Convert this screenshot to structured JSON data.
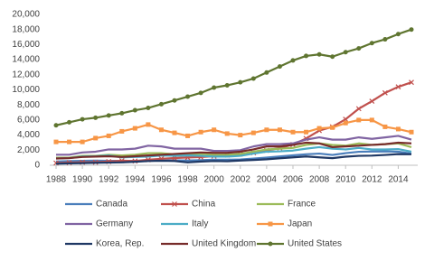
{
  "chart_data": {
    "type": "line",
    "x": [
      1988,
      1989,
      1990,
      1991,
      1992,
      1993,
      1994,
      1995,
      1996,
      1997,
      1998,
      1999,
      2000,
      2001,
      2002,
      2003,
      2004,
      2005,
      2006,
      2007,
      2008,
      2009,
      2010,
      2011,
      2012,
      2013,
      2014,
      2015
    ],
    "xlim": [
      1988,
      2015
    ],
    "xticks": [
      1988,
      1990,
      1992,
      1994,
      1996,
      1998,
      2000,
      2002,
      2004,
      2006,
      2008,
      2010,
      2012,
      2014
    ],
    "ylim": [
      0,
      20000
    ],
    "yticks": [
      0,
      {
        "value": 2000,
        "label": "2,000"
      },
      {
        "value": 4000,
        "label": "4,000"
      },
      {
        "value": 6000,
        "label": "6,000"
      },
      {
        "value": 8000,
        "label": "8,000"
      },
      {
        "value": 10000,
        "label": "10,000"
      },
      {
        "value": 12000,
        "label": "12,000"
      },
      {
        "value": 14000,
        "label": "14,000"
      },
      {
        "value": 16000,
        "label": "16,000"
      },
      {
        "value": 18000,
        "label": "18,000"
      },
      {
        "value": 20000,
        "label": "20,000"
      }
    ],
    "grid": false,
    "legend": "bottom",
    "series": [
      {
        "name": "Canada",
        "color": "#4a7ebb",
        "marker": "none",
        "values": [
          500,
          560,
          590,
          610,
          590,
          580,
          580,
          600,
          630,
          650,
          630,
          680,
          740,
          740,
          760,
          890,
          1020,
          1170,
          1320,
          1460,
          1550,
          1370,
          1610,
          1790,
          1830,
          1840,
          1800,
          1550
        ]
      },
      {
        "name": "China",
        "color": "#c0504d",
        "marker": "x",
        "values": [
          300,
          350,
          400,
          400,
          490,
          610,
          560,
          730,
          860,
          960,
          1030,
          1090,
          1200,
          1340,
          1470,
          1660,
          1960,
          2290,
          2750,
          3550,
          4600,
          5100,
          6100,
          7500,
          8500,
          9600,
          10400,
          11000
        ]
      },
      {
        "name": "France",
        "color": "#9bbb59",
        "marker": "none",
        "values": [
          1000,
          1000,
          1250,
          1250,
          1400,
          1300,
          1400,
          1600,
          1600,
          1450,
          1500,
          1500,
          1400,
          1400,
          1500,
          1800,
          2100,
          2200,
          2300,
          2700,
          2900,
          2700,
          2600,
          2900,
          2700,
          2800,
          2900,
          2400
        ]
      },
      {
        "name": "Germany",
        "color": "#8064a2",
        "marker": "none",
        "values": [
          1400,
          1400,
          1700,
          1800,
          2100,
          2100,
          2200,
          2600,
          2500,
          2200,
          2200,
          2200,
          1900,
          1900,
          2000,
          2500,
          2800,
          2800,
          2900,
          3400,
          3700,
          3400,
          3400,
          3700,
          3500,
          3700,
          3900,
          3400
        ]
      },
      {
        "name": "Italy",
        "color": "#4bacc6",
        "marker": "none",
        "values": [
          900,
          950,
          1150,
          1200,
          1300,
          1050,
          1100,
          1150,
          1300,
          1250,
          1300,
          1250,
          1150,
          1150,
          1250,
          1550,
          1800,
          1850,
          1950,
          2200,
          2400,
          2200,
          2100,
          2300,
          2100,
          2100,
          2150,
          1800
        ]
      },
      {
        "name": "Japan",
        "color": "#f79646",
        "marker": "square",
        "values": [
          3100,
          3100,
          3100,
          3600,
          3900,
          4500,
          4900,
          5400,
          4700,
          4300,
          3900,
          4400,
          4700,
          4200,
          4000,
          4300,
          4700,
          4700,
          4400,
          4400,
          4900,
          5000,
          5600,
          6000,
          6000,
          5100,
          4800,
          4400
        ]
      },
      {
        "name": "Korea, Rep.",
        "color": "#1f3864",
        "marker": "none",
        "values": [
          200,
          250,
          280,
          330,
          350,
          390,
          460,
          560,
          600,
          560,
          380,
          490,
          560,
          530,
          630,
          700,
          790,
          930,
          1050,
          1170,
          1050,
          940,
          1140,
          1250,
          1280,
          1370,
          1480,
          1460
        ]
      },
      {
        "name": "United Kingdom",
        "color": "#772c2a",
        "marker": "none",
        "values": [
          900,
          950,
          1100,
          1150,
          1200,
          1100,
          1200,
          1300,
          1400,
          1500,
          1600,
          1700,
          1650,
          1650,
          1800,
          2100,
          2500,
          2500,
          2700,
          3000,
          2900,
          2400,
          2500,
          2600,
          2700,
          2800,
          3000,
          2900
        ]
      },
      {
        "name": "United States",
        "color": "#5f7530",
        "marker": "circle",
        "values": [
          5300,
          5700,
          6100,
          6300,
          6600,
          6900,
          7300,
          7600,
          8100,
          8600,
          9100,
          9600,
          10300,
          10600,
          11000,
          11500,
          12300,
          13100,
          13900,
          14500,
          14700,
          14400,
          15000,
          15500,
          16200,
          16700,
          17400,
          18000
        ]
      }
    ]
  }
}
